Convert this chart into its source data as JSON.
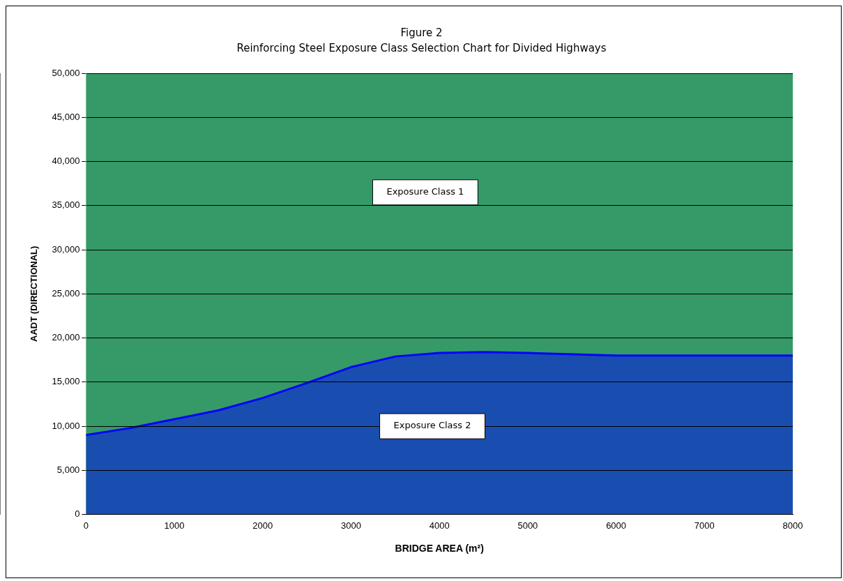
{
  "chart_data": {
    "type": "area",
    "title": "Figure 2",
    "subtitle": "Reinforcing Steel Exposure Class Selection Chart for Divided Highways",
    "xlabel": "BRIDGE AREA (m²)",
    "ylabel": "AADT (DIRECTIONAL)",
    "series": [
      {
        "color": "#1a4db0",
        "x": [
          0,
          500,
          1000,
          1500,
          2000,
          2500,
          3000,
          3500,
          4000,
          4500,
          5000,
          6000,
          7000,
          8000
        ],
        "values": [
          9000,
          9800,
          10800,
          11800,
          13200,
          14900,
          16700,
          17900,
          18300,
          18400,
          18300,
          18000,
          18000,
          18000
        ]
      }
    ],
    "xlim": [
      0,
      8000
    ],
    "xticks": [
      0,
      1000,
      2000,
      3000,
      4000,
      5000,
      6000,
      7000,
      8000
    ],
    "ylim": [
      0,
      50000
    ],
    "yticks": [
      {
        "value": 0,
        "label": "0"
      },
      {
        "value": 5000,
        "label": "5,000"
      },
      {
        "value": 10000,
        "label": "10,000"
      },
      {
        "value": 15000,
        "label": "15,000"
      },
      {
        "value": 20000,
        "label": "20,000"
      },
      {
        "value": 25000,
        "label": "25,000"
      },
      {
        "value": 30000,
        "label": "30,000"
      },
      {
        "value": 35000,
        "label": "35,000"
      },
      {
        "value": 40000,
        "label": "40,000"
      },
      {
        "value": 45000,
        "label": "45,000"
      },
      {
        "value": 50000,
        "label": "50,000"
      }
    ],
    "annotations": [
      "Exposure Class 1",
      "Exposure Class 2"
    ],
    "bands": [
      {
        "axis": "y",
        "from": 0,
        "to": 50000,
        "color": "#359a68"
      }
    ],
    "grid": "y",
    "legend": false
  }
}
